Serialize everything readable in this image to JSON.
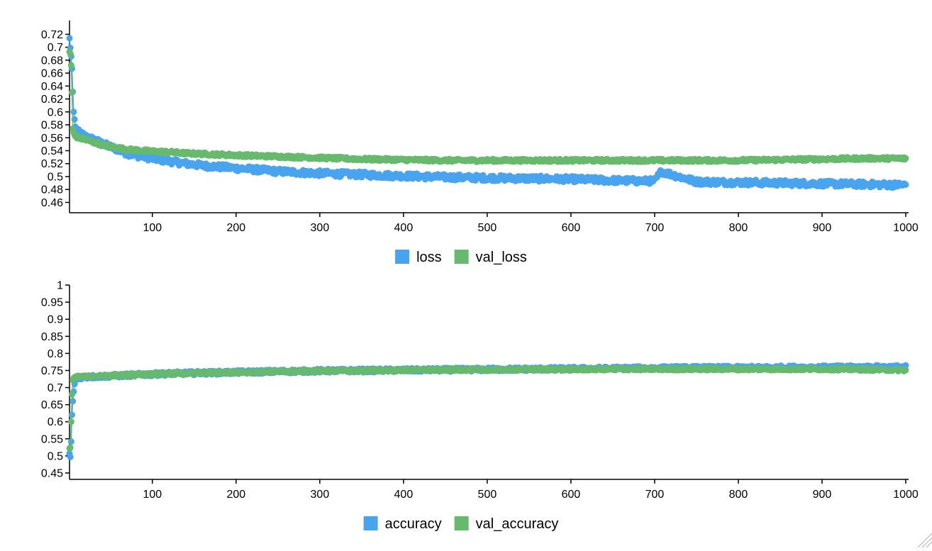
{
  "colors": {
    "series_a": "#48a4ee",
    "series_b": "#67b96d"
  },
  "chart_data": [
    {
      "type": "scatter",
      "title": "",
      "xlabel": "",
      "ylabel": "",
      "xlim": [
        1,
        1000
      ],
      "ylim": [
        0.455,
        0.727
      ],
      "x_ticks": [
        100,
        200,
        300,
        400,
        500,
        600,
        700,
        800,
        900,
        1000
      ],
      "x_tick_labels": [
        "100",
        "200",
        "300",
        "400",
        "500",
        "600",
        "700",
        "800",
        "900",
        "1000"
      ],
      "y_ticks": [
        0.46,
        0.48,
        0.5,
        0.52,
        0.54,
        0.56,
        0.58,
        0.6,
        0.62,
        0.64,
        0.66,
        0.68,
        0.7,
        0.72
      ],
      "y_tick_labels": [
        "0.46",
        "0.48",
        "0.5",
        "0.52",
        "0.54",
        "0.56",
        "0.58",
        "0.6",
        "0.62",
        "0.64",
        "0.66",
        "0.68",
        "0.7",
        "0.72"
      ],
      "legend_position": "bottom",
      "grid": false,
      "series": [
        {
          "name": "loss",
          "color": "#48a4ee",
          "x": [
            1,
            2,
            3,
            4,
            5,
            6,
            8,
            10,
            15,
            20,
            30,
            40,
            50,
            60,
            70,
            80,
            90,
            100,
            120,
            140,
            160,
            180,
            200,
            250,
            300,
            350,
            400,
            450,
            500,
            550,
            600,
            650,
            700,
            708,
            750,
            800,
            850,
            900,
            950,
            1000
          ],
          "y": [
            0.714,
            0.699,
            0.686,
            0.667,
            0.631,
            0.6,
            0.577,
            0.57,
            0.566,
            0.562,
            0.557,
            0.551,
            0.546,
            0.541,
            0.536,
            0.533,
            0.531,
            0.528,
            0.524,
            0.52,
            0.517,
            0.515,
            0.513,
            0.508,
            0.505,
            0.503,
            0.501,
            0.499,
            0.498,
            0.497,
            0.496,
            0.494,
            0.493,
            0.508,
            0.492,
            0.491,
            0.49,
            0.489,
            0.488,
            0.487
          ]
        },
        {
          "name": "val_loss",
          "color": "#67b96d",
          "x": [
            1,
            2,
            3,
            4,
            5,
            6,
            8,
            10,
            15,
            20,
            30,
            40,
            50,
            60,
            70,
            80,
            90,
            100,
            120,
            140,
            160,
            180,
            200,
            250,
            300,
            350,
            400,
            450,
            500,
            550,
            600,
            650,
            700,
            750,
            800,
            850,
            900,
            950,
            1000
          ],
          "y": [
            0.693,
            0.69,
            0.672,
            0.63,
            0.574,
            0.568,
            0.562,
            0.561,
            0.559,
            0.557,
            0.553,
            0.549,
            0.546,
            0.544,
            0.542,
            0.541,
            0.54,
            0.539,
            0.538,
            0.536,
            0.535,
            0.534,
            0.533,
            0.531,
            0.529,
            0.527,
            0.526,
            0.525,
            0.525,
            0.525,
            0.525,
            0.525,
            0.525,
            0.525,
            0.525,
            0.526,
            0.527,
            0.528,
            0.528
          ]
        }
      ]
    },
    {
      "type": "scatter",
      "title": "",
      "xlabel": "",
      "ylabel": "",
      "xlim": [
        1,
        1000
      ],
      "ylim": [
        0.45,
        1.0
      ],
      "x_ticks": [
        100,
        200,
        300,
        400,
        500,
        600,
        700,
        800,
        900,
        1000
      ],
      "x_tick_labels": [
        "100",
        "200",
        "300",
        "400",
        "500",
        "600",
        "700",
        "800",
        "900",
        "1000"
      ],
      "y_ticks": [
        0.45,
        0.5,
        0.55,
        0.6,
        0.65,
        0.7,
        0.75,
        0.8,
        0.85,
        0.9,
        0.95,
        1.0
      ],
      "y_tick_labels": [
        "0.45",
        "0.5",
        "0.55",
        "0.6",
        "0.65",
        "0.7",
        "0.75",
        "0.8",
        "0.85",
        "0.9",
        "0.95",
        "1"
      ],
      "legend_position": "bottom",
      "grid": false,
      "series": [
        {
          "name": "accuracy",
          "color": "#48a4ee",
          "x": [
            1,
            2,
            3,
            4,
            5,
            6,
            7,
            8,
            10,
            15,
            20,
            30,
            40,
            50,
            60,
            70,
            80,
            90,
            100,
            120,
            140,
            160,
            180,
            200,
            250,
            300,
            350,
            400,
            450,
            500,
            550,
            600,
            650,
            700,
            750,
            800,
            850,
            900,
            950,
            1000
          ],
          "y": [
            0.507,
            0.497,
            0.542,
            0.62,
            0.66,
            0.688,
            0.71,
            0.72,
            0.727,
            0.73,
            0.731,
            0.732,
            0.733,
            0.734,
            0.735,
            0.736,
            0.737,
            0.738,
            0.739,
            0.741,
            0.742,
            0.743,
            0.744,
            0.745,
            0.747,
            0.749,
            0.75,
            0.751,
            0.752,
            0.753,
            0.754,
            0.755,
            0.756,
            0.757,
            0.758,
            0.758,
            0.759,
            0.759,
            0.76,
            0.76
          ]
        },
        {
          "name": "val_accuracy",
          "color": "#67b96d",
          "x": [
            1,
            2,
            3,
            4,
            5,
            6,
            7,
            8,
            10,
            15,
            20,
            30,
            40,
            50,
            60,
            70,
            80,
            90,
            100,
            120,
            140,
            160,
            180,
            200,
            250,
            300,
            350,
            400,
            450,
            500,
            550,
            600,
            650,
            700,
            750,
            800,
            850,
            900,
            950,
            1000
          ],
          "y": [
            0.522,
            0.524,
            0.6,
            0.68,
            0.722,
            0.728,
            0.73,
            0.731,
            0.731,
            0.732,
            0.732,
            0.733,
            0.734,
            0.735,
            0.736,
            0.737,
            0.738,
            0.739,
            0.74,
            0.741,
            0.742,
            0.743,
            0.744,
            0.745,
            0.747,
            0.749,
            0.75,
            0.751,
            0.752,
            0.752,
            0.753,
            0.753,
            0.754,
            0.754,
            0.754,
            0.754,
            0.754,
            0.754,
            0.753,
            0.751
          ]
        }
      ]
    }
  ]
}
